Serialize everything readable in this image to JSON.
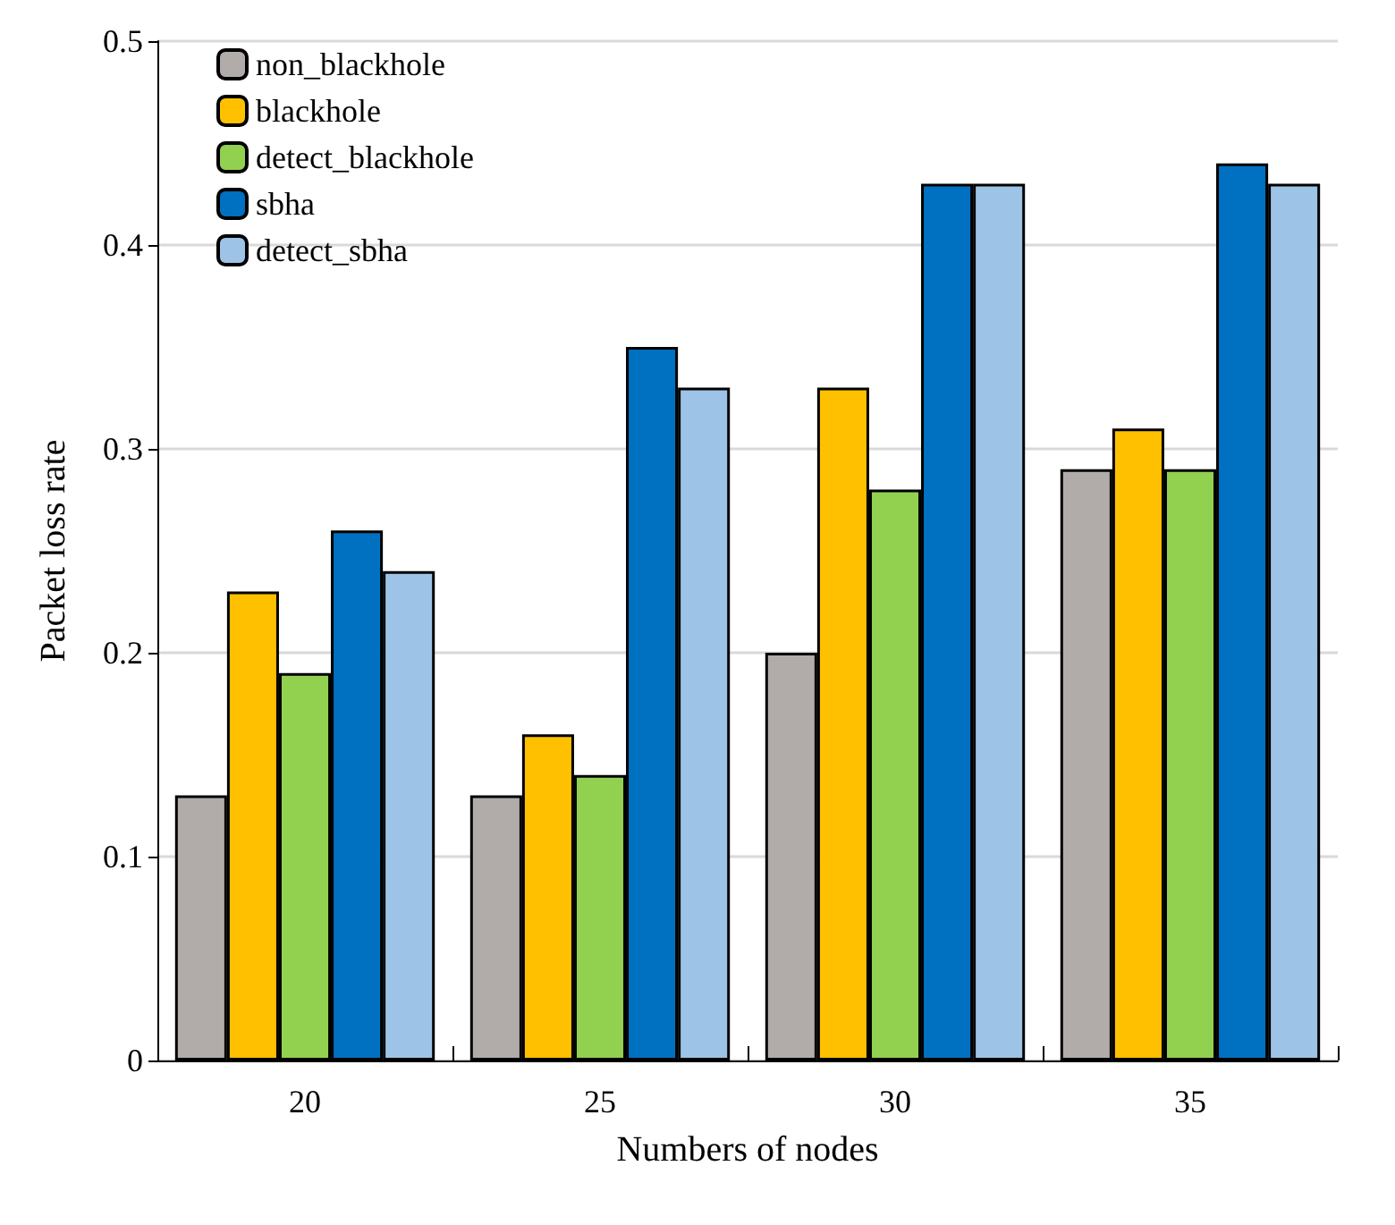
{
  "chart_data": {
    "type": "bar",
    "xlabel": "Numbers of nodes",
    "ylabel": "Packet loss rate",
    "categories": [
      "20",
      "25",
      "30",
      "35"
    ],
    "series": [
      {
        "name": "non_blackhole",
        "color": "#b1acaa",
        "values": [
          0.13,
          0.13,
          0.2,
          0.29
        ]
      },
      {
        "name": "blackhole",
        "color": "#ffc000",
        "values": [
          0.23,
          0.16,
          0.33,
          0.31
        ]
      },
      {
        "name": "detect_blackhole",
        "color": "#92d050",
        "values": [
          0.19,
          0.14,
          0.28,
          0.29
        ]
      },
      {
        "name": "sbha",
        "color": "#0070c0",
        "values": [
          0.26,
          0.35,
          0.43,
          0.44
        ]
      },
      {
        "name": "detect_sbha",
        "color": "#9dc3e6",
        "values": [
          0.24,
          0.33,
          0.43,
          0.43
        ]
      }
    ],
    "ylim": [
      0,
      0.5
    ],
    "yticks": [
      0,
      0.1,
      0.2,
      0.3,
      0.4,
      0.5
    ],
    "grid": "y",
    "legend": "top left"
  }
}
